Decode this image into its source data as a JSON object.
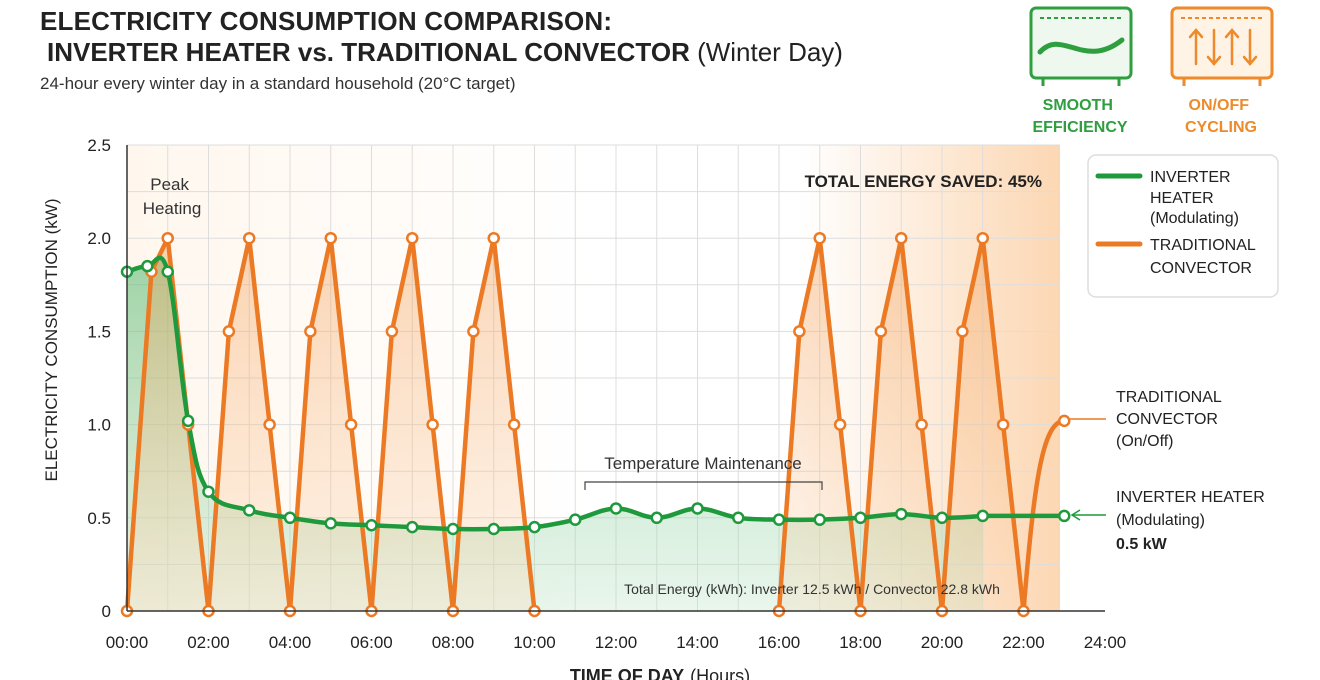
{
  "header": {
    "title_line1": "ELECTRICITY CONSUMPTION COMPARISON:",
    "title_line2_bold": "INVERTER HEATER vs. TRADITIONAL CONVECTOR",
    "title_line2_rest": " (Winter Day)",
    "subtitle": "24-hour every winter day in a standard household (20°C target)"
  },
  "badges": [
    {
      "icon": "wave-heater-icon",
      "line1": "SMOOTH",
      "line2": "EFFICIENCY",
      "color": "#2e9e3e"
    },
    {
      "icon": "arrows-heater-icon",
      "line1": "ON/OFF",
      "line2": "CYCLING",
      "color": "#ee8a2a"
    }
  ],
  "legend": [
    {
      "line1": "INVERTER",
      "line2": "HEATER",
      "line3": "(Modulating)",
      "color": "#1e9a3c"
    },
    {
      "line1": "TRADITIONAL",
      "line2": "CONVECTOR",
      "line3": "",
      "color": "#ec7a25"
    }
  ],
  "annotations": {
    "peak_line1": "Peak",
    "peak_line2": "Heating",
    "energy_saved": "TOTAL ENERGY SAVED: 45%",
    "maintenance": "Temperature Maintenance",
    "total_energy": "Total Energy (kWh): Inverter 12.5 kWh / Convector 22.8 kWh",
    "conv_label_line1": "TRADITIONAL",
    "conv_label_line2": "CONVECTOR",
    "conv_label_line3": "(On/Off)",
    "inv_label_line1": "INVERTER HEATER",
    "inv_label_line2": "(Modulating)",
    "inv_label_line3": "0.5 kW"
  },
  "colors": {
    "inverter": "#1e9a3c",
    "convector": "#ec7a25",
    "grid": "#dddddd"
  },
  "chart_data": {
    "type": "line",
    "title": "ELECTRICITY CONSUMPTION COMPARISON: INVERTER HEATER vs. TRADITIONAL CONVECTOR (Winter Day)",
    "xlabel": "TIME OF DAY",
    "xlabel_unit": "(Hours)",
    "ylabel": "ELECTRICITY CONSUMPTION (kW)",
    "xlim": [
      0,
      24
    ],
    "ylim": [
      0,
      2.5
    ],
    "x_ticks": [
      "00:00",
      "02:00",
      "04:00",
      "06:00",
      "08:00",
      "10:00",
      "12:00",
      "14:00",
      "16:00",
      "18:00",
      "20:00",
      "22:00",
      "24:00"
    ],
    "y_ticks": [
      "0",
      "0.5",
      "1.0",
      "1.5",
      "2.0",
      "2.5"
    ],
    "grid": true,
    "legend_position": "top-right",
    "series": [
      {
        "name": "INVERTER HEATER (Modulating)",
        "x": [
          0,
          0.5,
          1,
          1.5,
          2,
          3,
          4,
          5,
          6,
          7,
          8,
          9,
          10,
          11,
          12,
          13,
          14,
          15,
          16,
          17,
          18,
          19,
          20,
          21
        ],
        "y": [
          1.82,
          1.85,
          1.82,
          1.02,
          0.64,
          0.54,
          0.5,
          0.47,
          0.46,
          0.45,
          0.44,
          0.44,
          0.45,
          0.49,
          0.55,
          0.5,
          0.55,
          0.5,
          0.49,
          0.49,
          0.5,
          0.52,
          0.5,
          0.51
        ]
      },
      {
        "name": "TRADITIONAL CONVECTOR",
        "x": [
          0,
          0.6,
          1,
          1.5,
          2,
          2.5,
          3,
          3.5,
          4,
          4.5,
          5,
          5.5,
          6,
          6.5,
          7,
          7.5,
          8,
          8.5,
          9,
          9.5,
          10,
          16,
          16.5,
          17,
          17.5,
          18,
          18.5,
          19,
          19.5,
          20,
          20.5,
          21,
          21.5,
          22
        ],
        "y": [
          0,
          1.82,
          2.0,
          1.0,
          0,
          1.5,
          2.0,
          1.0,
          0,
          1.5,
          2.0,
          1.0,
          0,
          1.5,
          2.0,
          1.0,
          0,
          1.5,
          2.0,
          1.0,
          0,
          0,
          1.5,
          2.0,
          1.0,
          0,
          1.5,
          2.0,
          1.0,
          0,
          1.5,
          2.0,
          1.0,
          0
        ]
      }
    ]
  }
}
